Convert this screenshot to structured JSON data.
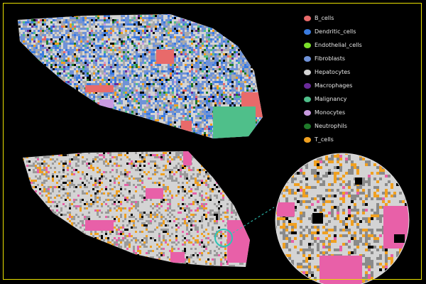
{
  "legend": [
    {
      "label": "B_cells",
      "color": "#e86a6a"
    },
    {
      "label": "Dendritic_cells",
      "color": "#3a7be0"
    },
    {
      "label": "Endothelial_cells",
      "color": "#7be02a"
    },
    {
      "label": "Fibroblasts",
      "color": "#6f92d8"
    },
    {
      "label": "Hepatocytes",
      "color": "#d4d4d4"
    },
    {
      "label": "Macrophages",
      "color": "#6a2a9a"
    },
    {
      "label": "Malignancy",
      "color": "#4fbf8a"
    },
    {
      "label": "Monocytes",
      "color": "#c89ae0"
    },
    {
      "label": "Neutrophils",
      "color": "#1f7a2a"
    },
    {
      "label": "T_cells",
      "color": "#f0a020"
    }
  ],
  "highlight_color": "#e860a8",
  "zoom_marker_color": "#2ec4b6",
  "frame_color": "#e8e000"
}
